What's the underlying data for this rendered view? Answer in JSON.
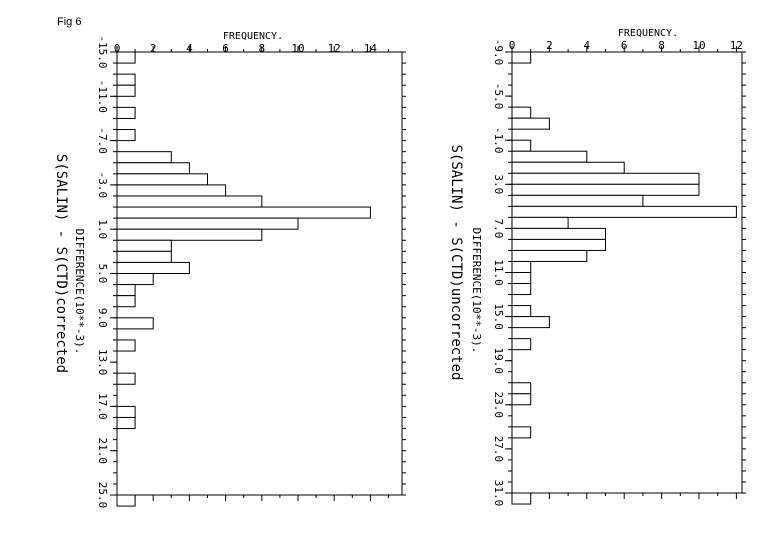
{
  "figure_label": "Fig 6",
  "chart_data": [
    {
      "type": "bar",
      "orientation": "horizontal",
      "xlabel": "FREQUENCY.",
      "ylabel": "DIFFERENCE(10**-3).",
      "title": "S(SALIN) - S(CTD)corrected",
      "xlim": [
        0,
        15
      ],
      "xticks": [
        0,
        2,
        4,
        6,
        8,
        10,
        12,
        14
      ],
      "ylim": [
        -15.0,
        25.0
      ],
      "yticks": [
        -15.0,
        -11.0,
        -7.0,
        -3.0,
        1.0,
        5.0,
        9.0,
        13.0,
        17.0,
        21.0,
        25.0
      ],
      "ytick_labels": [
        "-15.0",
        "-11.0",
        "-7.0",
        "-3.0",
        "1.0",
        "5.0",
        "9.0",
        "13.0",
        "17.0",
        "21.0",
        "25.0"
      ],
      "bin_width": 1,
      "bins": [
        {
          "start": -15.0,
          "count": 1
        },
        {
          "start": -13.0,
          "count": 1
        },
        {
          "start": -12.0,
          "count": 1
        },
        {
          "start": -10.0,
          "count": 1
        },
        {
          "start": -8.0,
          "count": 1
        },
        {
          "start": -6.0,
          "count": 3
        },
        {
          "start": -5.0,
          "count": 4
        },
        {
          "start": -4.0,
          "count": 5
        },
        {
          "start": -3.0,
          "count": 6
        },
        {
          "start": -2.0,
          "count": 8
        },
        {
          "start": -1.0,
          "count": 14
        },
        {
          "start": 0.0,
          "count": 10
        },
        {
          "start": 1.0,
          "count": 8
        },
        {
          "start": 2.0,
          "count": 3
        },
        {
          "start": 3.0,
          "count": 3
        },
        {
          "start": 4.0,
          "count": 4
        },
        {
          "start": 5.0,
          "count": 2
        },
        {
          "start": 6.0,
          "count": 1
        },
        {
          "start": 7.0,
          "count": 1
        },
        {
          "start": 9.0,
          "count": 2
        },
        {
          "start": 11.0,
          "count": 1
        },
        {
          "start": 14.0,
          "count": 1
        },
        {
          "start": 17.0,
          "count": 1
        },
        {
          "start": 18.0,
          "count": 1
        },
        {
          "start": 25.0,
          "count": 1
        }
      ]
    },
    {
      "type": "bar",
      "orientation": "horizontal",
      "xlabel": "FREQUENCY.",
      "ylabel": "DIFFERENCE(10**-3).",
      "title": "S(SALIN) - S(CTD)uncorrected",
      "xlim": [
        0,
        12
      ],
      "xticks": [
        0,
        2,
        4,
        6,
        8,
        10,
        12
      ],
      "xtick_labels": [
        "0",
        "2",
        "4",
        "6",
        "8",
        "10",
        "12"
      ],
      "ylim": [
        -9.0,
        31.0
      ],
      "yticks": [
        -9.0,
        -5.0,
        -1.0,
        3.0,
        7.0,
        11.0,
        15.0,
        19.0,
        23.0,
        27.0,
        31.0
      ],
      "ytick_labels": [
        "-9.0",
        "-5.0",
        "-1.0",
        "3.0",
        "7.0",
        "11.0",
        "15.0",
        "19.0",
        "23.0",
        "27.0",
        "31.0"
      ],
      "bin_width": 1,
      "bins": [
        {
          "start": -9.0,
          "count": 1
        },
        {
          "start": -4.0,
          "count": 1
        },
        {
          "start": -3.0,
          "count": 2
        },
        {
          "start": -1.0,
          "count": 1
        },
        {
          "start": 0.0,
          "count": 4
        },
        {
          "start": 1.0,
          "count": 6
        },
        {
          "start": 2.0,
          "count": 10
        },
        {
          "start": 3.0,
          "count": 10
        },
        {
          "start": 4.0,
          "count": 7
        },
        {
          "start": 5.0,
          "count": 12
        },
        {
          "start": 6.0,
          "count": 3
        },
        {
          "start": 7.0,
          "count": 5
        },
        {
          "start": 8.0,
          "count": 5
        },
        {
          "start": 9.0,
          "count": 4
        },
        {
          "start": 10.0,
          "count": 1
        },
        {
          "start": 11.0,
          "count": 1
        },
        {
          "start": 12.0,
          "count": 1
        },
        {
          "start": 14.0,
          "count": 1
        },
        {
          "start": 15.0,
          "count": 2
        },
        {
          "start": 17.0,
          "count": 1
        },
        {
          "start": 21.0,
          "count": 1
        },
        {
          "start": 22.0,
          "count": 1
        },
        {
          "start": 25.0,
          "count": 1
        },
        {
          "start": 31.0,
          "count": 1
        }
      ]
    }
  ]
}
